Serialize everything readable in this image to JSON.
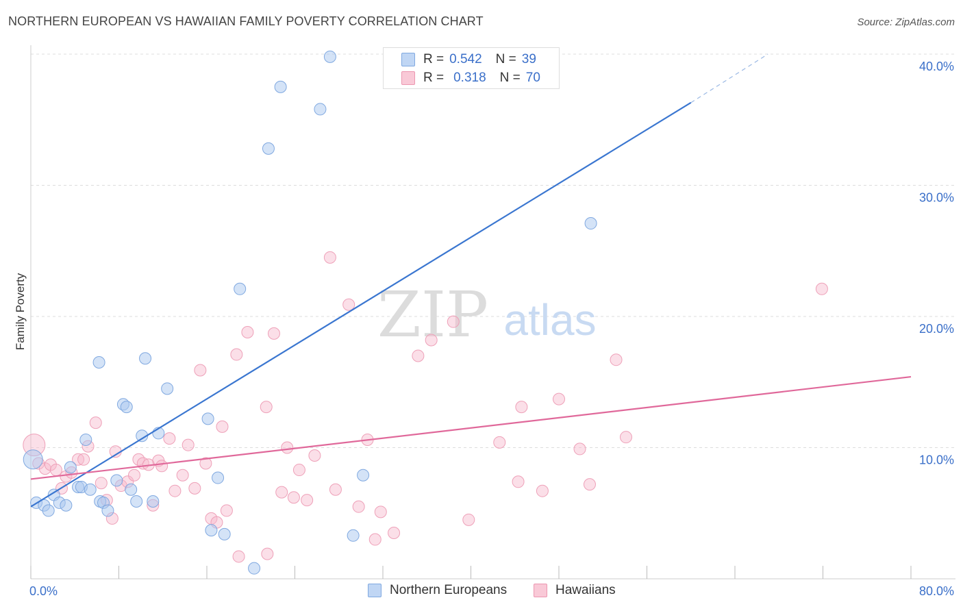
{
  "title": "NORTHERN EUROPEAN VS HAWAIIAN FAMILY POVERTY CORRELATION CHART",
  "source": "Source: ZipAtlas.com",
  "watermark": {
    "zip": "ZIP",
    "atlas": "atlas"
  },
  "legend": {
    "rows": [
      {
        "r_label": "R =",
        "r_value": "0.542",
        "n_label": "N =",
        "n_value": "39",
        "color": "#9fc3ef"
      },
      {
        "r_label": "R =",
        "r_value": "0.318",
        "n_label": "N =",
        "n_value": "70",
        "color": "#f4a9c0"
      }
    ]
  },
  "bottom_legend": [
    {
      "name": "Northern Europeans",
      "color": "#9fc3ef"
    },
    {
      "name": "Hawaiians",
      "color": "#f4a9c0"
    }
  ],
  "chart_data": {
    "type": "scatter",
    "title": "NORTHERN EUROPEAN VS HAWAIIAN FAMILY POVERTY CORRELATION CHART",
    "xlabel": "",
    "ylabel": "Family Poverty",
    "xlim": [
      0,
      80
    ],
    "ylim": [
      0,
      40
    ],
    "x_tick_labels": [
      "0.0%",
      "80.0%"
    ],
    "y_tick_labels": [
      "10.0%",
      "20.0%",
      "30.0%",
      "40.0%"
    ],
    "y_ticks": [
      10,
      20,
      30,
      40
    ],
    "x_ticks": [
      0,
      8,
      16,
      24,
      32,
      40,
      48,
      56,
      64,
      72,
      80
    ],
    "grid": true,
    "colors": {
      "blue": "#3a76d0",
      "pink": "#e0689a",
      "blue_fill": "#a9c8f0",
      "pink_fill": "#f6b8cb",
      "axis_text": "#3a6fc9"
    },
    "series": [
      {
        "name": "Northern Europeans",
        "points": [
          [
            0.2,
            9.1
          ],
          [
            0.5,
            5.8
          ],
          [
            1.2,
            5.6
          ],
          [
            1.6,
            5.2
          ],
          [
            2.1,
            6.4
          ],
          [
            2.6,
            5.8
          ],
          [
            3.2,
            5.6
          ],
          [
            3.6,
            8.5
          ],
          [
            4.3,
            7.0
          ],
          [
            4.6,
            7.0
          ],
          [
            5.0,
            10.6
          ],
          [
            5.4,
            6.8
          ],
          [
            6.2,
            16.5
          ],
          [
            6.3,
            5.9
          ],
          [
            6.6,
            5.8
          ],
          [
            7.0,
            5.2
          ],
          [
            7.8,
            7.5
          ],
          [
            8.4,
            13.3
          ],
          [
            8.7,
            13.1
          ],
          [
            9.1,
            6.8
          ],
          [
            9.6,
            5.9
          ],
          [
            10.1,
            10.9
          ],
          [
            10.4,
            16.8
          ],
          [
            11.1,
            5.9
          ],
          [
            11.6,
            11.1
          ],
          [
            12.4,
            14.5
          ],
          [
            16.1,
            12.2
          ],
          [
            16.4,
            3.7
          ],
          [
            17.0,
            7.7
          ],
          [
            17.6,
            3.4
          ],
          [
            19.0,
            22.1
          ],
          [
            20.3,
            0.8
          ],
          [
            21.6,
            32.8
          ],
          [
            22.7,
            37.5
          ],
          [
            26.3,
            35.8
          ],
          [
            27.2,
            39.8
          ],
          [
            29.3,
            3.3
          ],
          [
            30.2,
            7.9
          ],
          [
            50.9,
            27.1
          ]
        ],
        "trend": {
          "x": [
            0.0,
            60.0
          ],
          "y": [
            5.5,
            36.3
          ],
          "dashed_to": [
            67.0,
            40.0
          ]
        },
        "r": 0.542,
        "n": 39
      },
      {
        "name": "Hawaiians",
        "points": [
          [
            0.3,
            10.2
          ],
          [
            0.7,
            8.8
          ],
          [
            1.3,
            8.4
          ],
          [
            1.8,
            8.7
          ],
          [
            2.3,
            8.3
          ],
          [
            2.8,
            6.9
          ],
          [
            3.2,
            7.8
          ],
          [
            3.7,
            8.1
          ],
          [
            4.3,
            9.1
          ],
          [
            4.8,
            9.1
          ],
          [
            5.2,
            10.1
          ],
          [
            5.9,
            11.9
          ],
          [
            6.4,
            7.3
          ],
          [
            6.9,
            6.0
          ],
          [
            7.4,
            4.6
          ],
          [
            7.7,
            9.7
          ],
          [
            8.2,
            7.1
          ],
          [
            8.8,
            7.4
          ],
          [
            9.4,
            7.9
          ],
          [
            9.8,
            9.1
          ],
          [
            10.2,
            8.8
          ],
          [
            10.7,
            8.7
          ],
          [
            11.1,
            5.6
          ],
          [
            11.6,
            9.0
          ],
          [
            11.9,
            8.6
          ],
          [
            12.6,
            10.7
          ],
          [
            13.1,
            6.7
          ],
          [
            13.8,
            7.9
          ],
          [
            14.3,
            10.2
          ],
          [
            14.9,
            6.9
          ],
          [
            15.4,
            15.9
          ],
          [
            15.9,
            8.8
          ],
          [
            16.4,
            4.6
          ],
          [
            16.9,
            4.3
          ],
          [
            17.4,
            11.6
          ],
          [
            17.8,
            5.2
          ],
          [
            18.7,
            17.1
          ],
          [
            18.9,
            1.7
          ],
          [
            19.7,
            18.8
          ],
          [
            21.4,
            13.1
          ],
          [
            21.5,
            1.9
          ],
          [
            22.1,
            18.7
          ],
          [
            22.8,
            6.6
          ],
          [
            23.3,
            10.0
          ],
          [
            23.9,
            6.2
          ],
          [
            24.4,
            8.3
          ],
          [
            25.1,
            6.0
          ],
          [
            25.8,
            9.4
          ],
          [
            27.2,
            24.5
          ],
          [
            27.7,
            6.8
          ],
          [
            28.9,
            20.9
          ],
          [
            29.8,
            5.5
          ],
          [
            30.6,
            10.6
          ],
          [
            31.3,
            3.0
          ],
          [
            31.8,
            5.1
          ],
          [
            33.0,
            3.5
          ],
          [
            35.2,
            17.0
          ],
          [
            36.4,
            18.2
          ],
          [
            38.4,
            19.6
          ],
          [
            39.8,
            4.5
          ],
          [
            42.6,
            10.4
          ],
          [
            44.3,
            7.4
          ],
          [
            44.6,
            13.1
          ],
          [
            46.5,
            6.7
          ],
          [
            48.0,
            13.7
          ],
          [
            49.9,
            9.9
          ],
          [
            50.8,
            7.2
          ],
          [
            53.2,
            16.7
          ],
          [
            54.1,
            10.8
          ],
          [
            71.9,
            22.1
          ]
        ],
        "trend": {
          "x": [
            0.0,
            80.0
          ],
          "y": [
            7.6,
            15.4
          ]
        },
        "r": 0.318,
        "n": 70
      }
    ]
  }
}
